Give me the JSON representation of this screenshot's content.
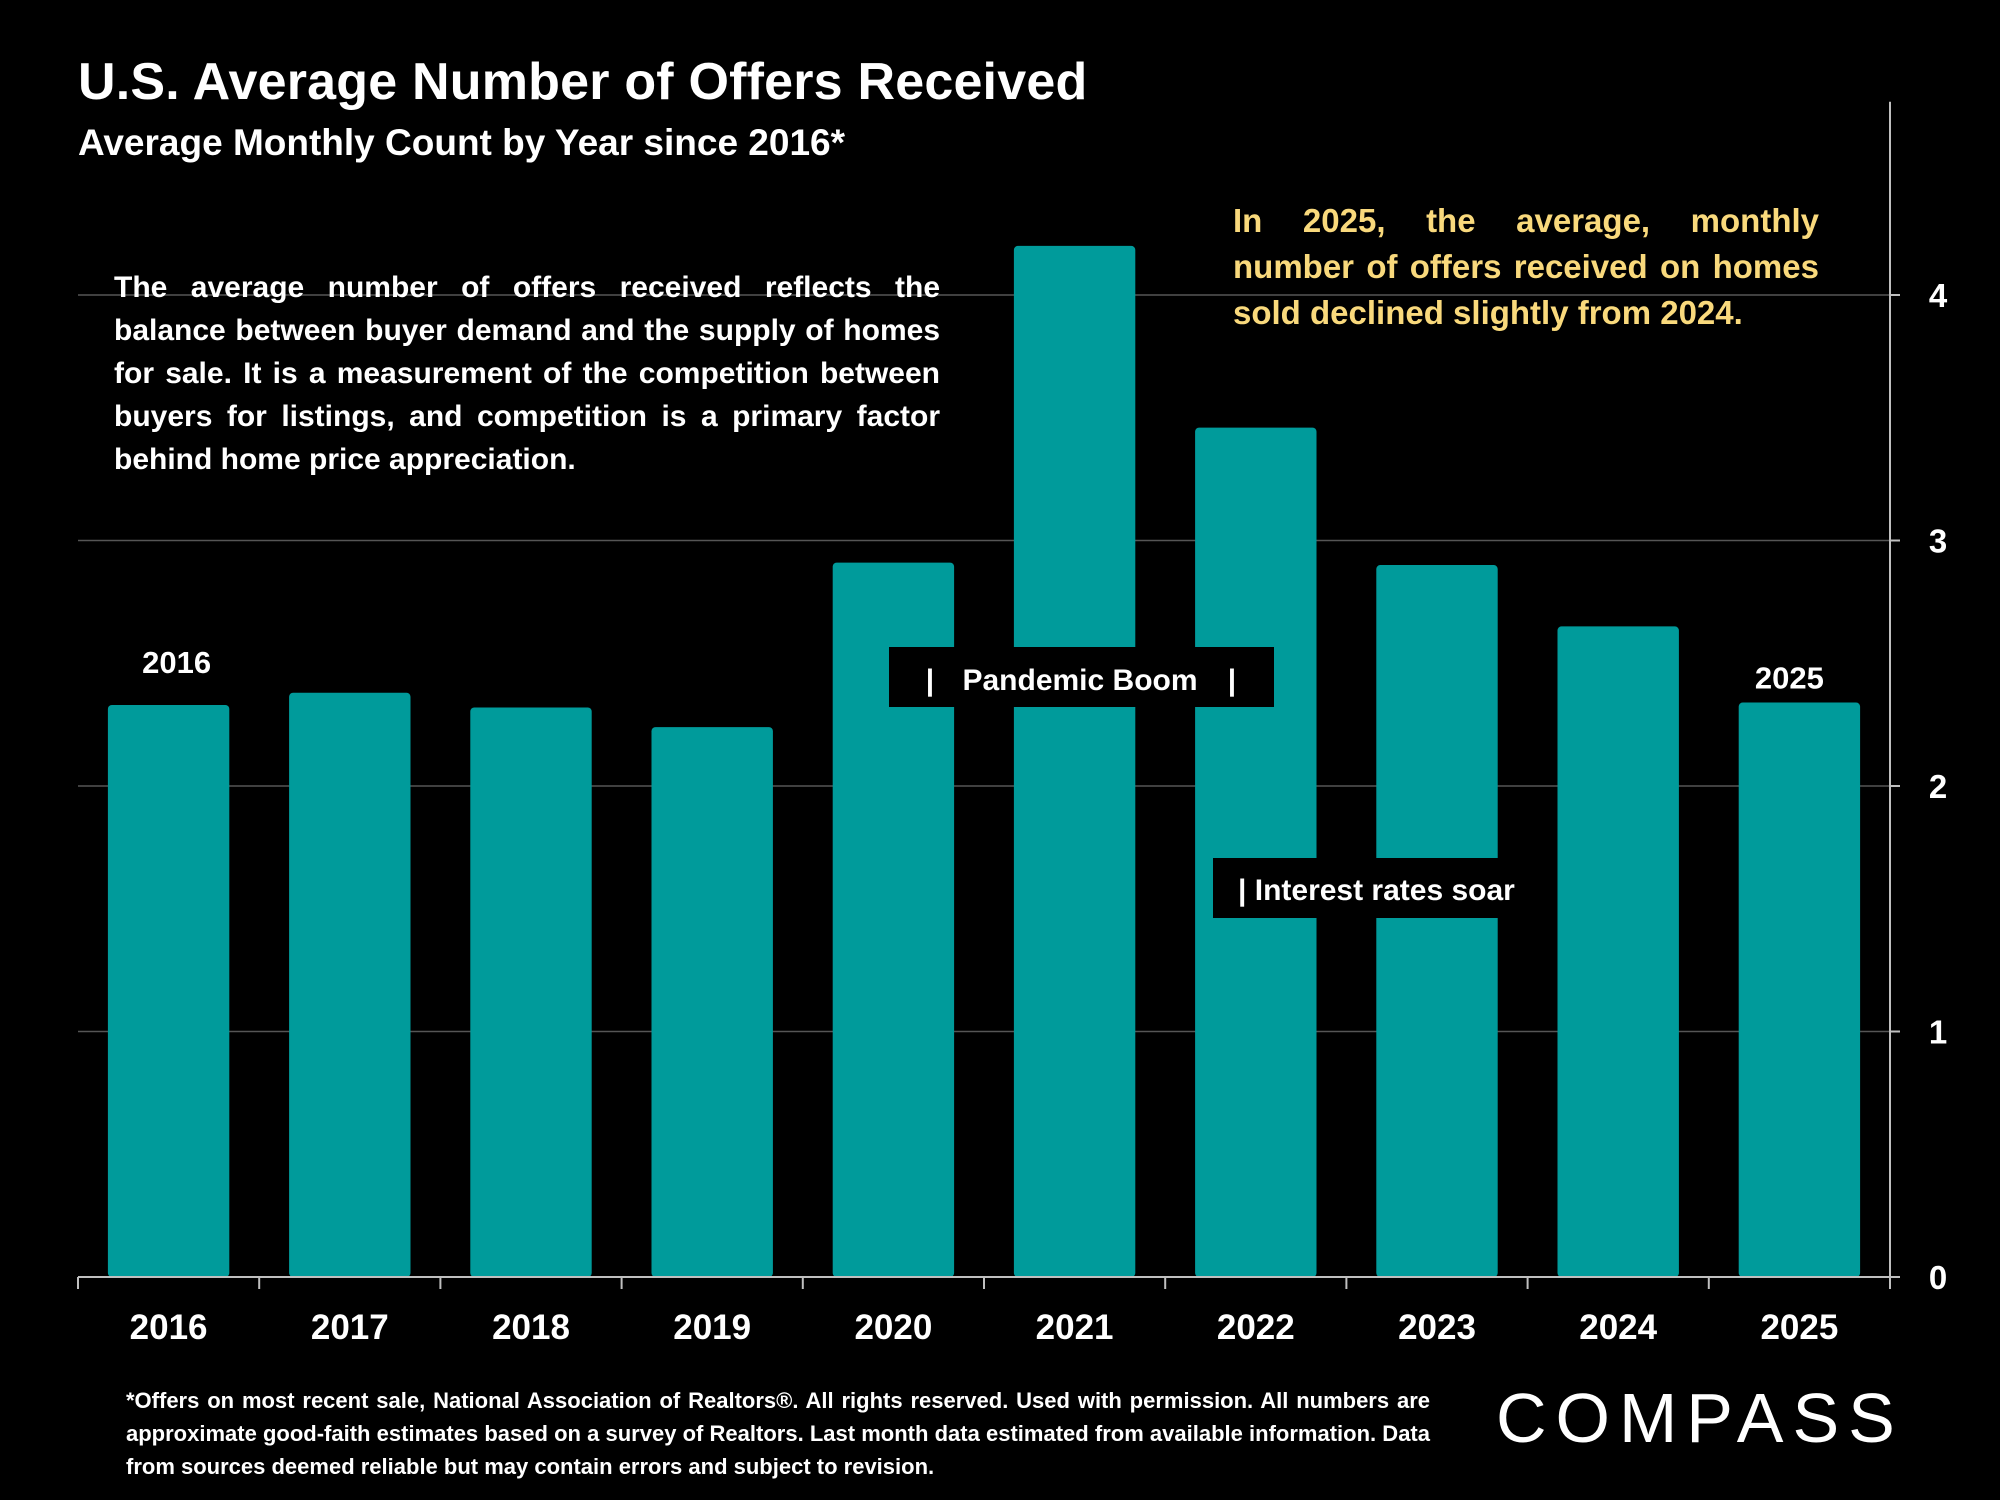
{
  "header": {
    "title": "U.S. Average Number of Offers Received",
    "subtitle": "Average Monthly Count by Year since 2016*"
  },
  "annotations": {
    "description": "The average number of offers received reflects the balance between buyer demand and the supply of homes for sale. It is a measurement of the competition between buyers for listings, and competition is a primary factor behind home price appreciation.",
    "callout": "In 2025, the average, monthly number of offers received on homes sold declined slightly from 2024.",
    "pandemic_label": "Pandemic Boom",
    "pandemic_mark": "|",
    "rates_label": "| Interest rates soar",
    "first_bar_label": "2016",
    "last_bar_label": "2025"
  },
  "footer": {
    "footnote": "*Offers on most recent sale, National Association of Realtors®. All rights reserved. Used with permission. All numbers are approximate good-faith estimates based on a survey of Realtors. Last month data estimated from available information. Data from sources deemed reliable but may contain errors and subject to revision.",
    "logo": "COMPASS"
  },
  "colors": {
    "background": "#000000",
    "bar": "#009b9b",
    "callout_text": "#f9d97c",
    "gridline": "#555555"
  },
  "chart_data": {
    "type": "bar",
    "categories": [
      "2016",
      "2017",
      "2018",
      "2019",
      "2020",
      "2021",
      "2022",
      "2023",
      "2024",
      "2025"
    ],
    "values": [
      2.33,
      2.38,
      2.32,
      2.24,
      2.91,
      4.2,
      3.46,
      2.9,
      2.65,
      2.34
    ],
    "ylim": [
      0,
      4.4
    ],
    "yticks": [
      0,
      1,
      2,
      3,
      4
    ],
    "yaxis_position": "right",
    "grid": true,
    "legend": "none"
  }
}
